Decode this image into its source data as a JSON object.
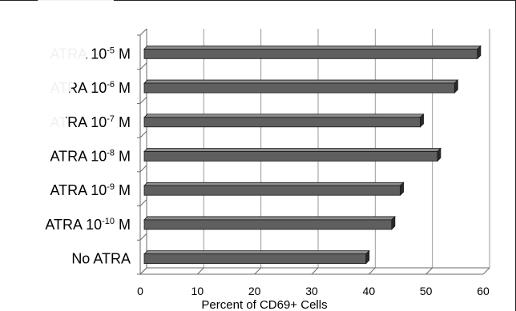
{
  "chart_data": {
    "type": "bar",
    "orientation": "horizontal",
    "style": "3d",
    "categories": [
      {
        "base": "ATRA 10",
        "exp": "-5",
        "unit": " M"
      },
      {
        "base": "ATRA 10",
        "exp": "-6",
        "unit": " M"
      },
      {
        "base": "ATRA 10",
        "exp": "-7",
        "unit": " M"
      },
      {
        "base": "ATRA 10",
        "exp": "-8",
        "unit": " M"
      },
      {
        "base": "ATRA 10",
        "exp": "-9",
        "unit": " M"
      },
      {
        "base": "ATRA 10",
        "exp": "-10",
        "unit": " M"
      },
      {
        "base": "No ATRA",
        "exp": "",
        "unit": ""
      }
    ],
    "values": [
      59,
      55,
      49,
      52,
      45.5,
      44,
      39.5
    ],
    "xlim": [
      0,
      60
    ],
    "xticks": [
      0,
      10,
      20,
      30,
      40,
      50,
      60
    ],
    "xtick_labels": [
      "0",
      "10",
      "20",
      "30",
      "40",
      "50",
      "60"
    ],
    "xlabel": "Percent of CD69+ Cells",
    "ylabel": "",
    "title": "",
    "grid": "vertical",
    "legend": "none",
    "colors": {
      "bar_front": "#5f5f5f",
      "bar_top": "#8c8c8c",
      "bar_side": "#2a2a2a",
      "bar_edge": "#1a1a1a",
      "grid": "#9a9a9a",
      "axis": "#6a6a6a"
    }
  }
}
